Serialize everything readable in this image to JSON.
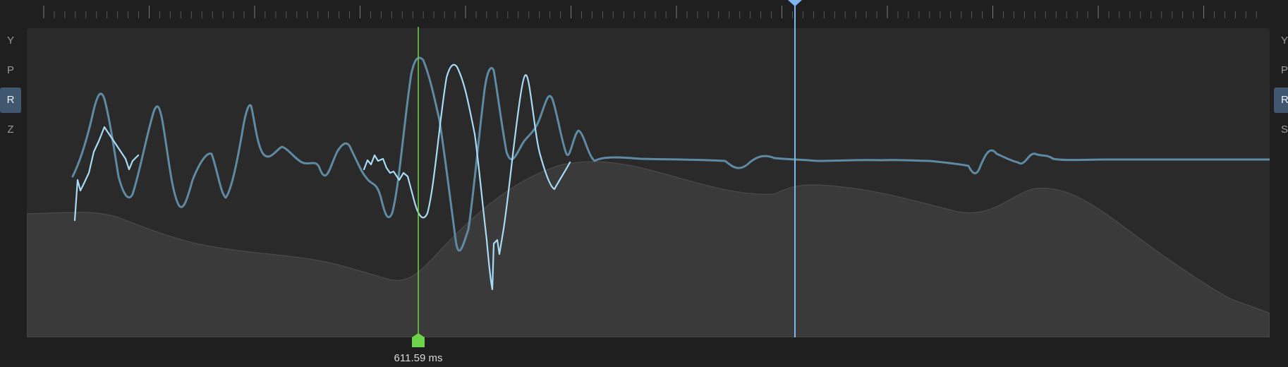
{
  "axes_left": [
    {
      "label": "Y",
      "active": false
    },
    {
      "label": "P",
      "active": false
    },
    {
      "label": "R",
      "active": true
    },
    {
      "label": "Z",
      "active": false
    }
  ],
  "axes_right": [
    {
      "label": "Y",
      "active": false
    },
    {
      "label": "P",
      "active": false
    },
    {
      "label": "R",
      "active": true
    },
    {
      "label": "S",
      "active": false
    }
  ],
  "cursor": {
    "label": "611.59 ms",
    "color": "#6fd24b"
  },
  "playhead": {
    "color": "#7fb6ef"
  },
  "colors": {
    "trace_dim": "#5f8aa3",
    "trace_bright": "#a8dcf6",
    "envelope_fill": "#3a3a3a",
    "envelope_stroke": "#4a4a4a"
  }
}
